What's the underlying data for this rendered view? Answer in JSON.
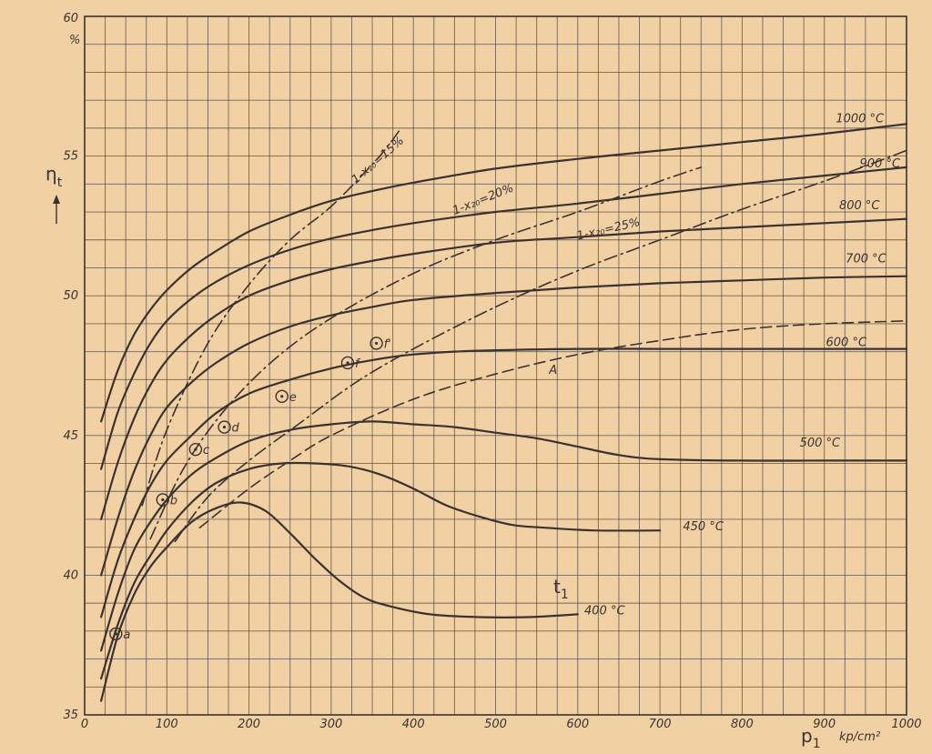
{
  "chart_data": {
    "type": "line",
    "xlabel": "p",
    "xlabel_sub": "1",
    "xunit": "kp/cm²",
    "ylabel": "η",
    "ylabel_sub": "t",
    "yunit": "%",
    "param_label": "t",
    "param_label_sub": "1",
    "xlim": [
      0,
      1000
    ],
    "ylim": [
      35,
      60
    ],
    "x_ticks": [
      "0",
      "100",
      "200",
      "300",
      "400",
      "500",
      "600",
      "700",
      "800",
      "900",
      "1000"
    ],
    "y_ticks": [
      "35",
      "40",
      "45",
      "50",
      "55",
      "60"
    ],
    "grid": true,
    "series": [
      {
        "name": "400 °C",
        "style": "solid",
        "label_at": [
          608,
          38.6
        ],
        "points": [
          [
            20,
            35.5
          ],
          [
            40,
            37.8
          ],
          [
            60,
            39.3
          ],
          [
            80,
            40.3
          ],
          [
            100,
            41
          ],
          [
            130,
            41.9
          ],
          [
            160,
            42.4
          ],
          [
            190,
            42.6
          ],
          [
            220,
            42.3
          ],
          [
            250,
            41.5
          ],
          [
            280,
            40.6
          ],
          [
            310,
            39.8
          ],
          [
            340,
            39.2
          ],
          [
            370,
            38.9
          ],
          [
            420,
            38.6
          ],
          [
            480,
            38.5
          ],
          [
            540,
            38.5
          ],
          [
            600,
            38.6
          ]
        ]
      },
      {
        "name": "450 °C",
        "style": "solid",
        "label_at": [
          728,
          41.6
        ],
        "points": [
          [
            20,
            36.3
          ],
          [
            40,
            38.2
          ],
          [
            60,
            39.7
          ],
          [
            80,
            40.7
          ],
          [
            100,
            41.6
          ],
          [
            130,
            42.6
          ],
          [
            160,
            43.3
          ],
          [
            200,
            43.8
          ],
          [
            240,
            44
          ],
          [
            280,
            44
          ],
          [
            320,
            43.9
          ],
          [
            360,
            43.6
          ],
          [
            400,
            43.1
          ],
          [
            440,
            42.5
          ],
          [
            480,
            42.1
          ],
          [
            520,
            41.8
          ],
          [
            560,
            41.7
          ],
          [
            620,
            41.6
          ],
          [
            700,
            41.6
          ]
        ]
      },
      {
        "name": "500 °C",
        "style": "solid",
        "label_at": [
          870,
          44.6
        ],
        "points": [
          [
            20,
            37.3
          ],
          [
            40,
            39.3
          ],
          [
            60,
            40.9
          ],
          [
            80,
            41.9
          ],
          [
            100,
            42.7
          ],
          [
            130,
            43.6
          ],
          [
            160,
            44.2
          ],
          [
            200,
            44.8
          ],
          [
            250,
            45.2
          ],
          [
            300,
            45.4
          ],
          [
            350,
            45.5
          ],
          [
            400,
            45.4
          ],
          [
            450,
            45.3
          ],
          [
            500,
            45.1
          ],
          [
            550,
            44.9
          ],
          [
            600,
            44.6
          ],
          [
            650,
            44.3
          ],
          [
            700,
            44.15
          ],
          [
            800,
            44.1
          ],
          [
            900,
            44.1
          ],
          [
            1000,
            44.1
          ]
        ]
      },
      {
        "name": "600 °C",
        "style": "solid",
        "label_at": [
          902,
          48.2
        ],
        "points": [
          [
            20,
            38.5
          ],
          [
            40,
            40.5
          ],
          [
            60,
            42
          ],
          [
            80,
            43.2
          ],
          [
            100,
            44.1
          ],
          [
            130,
            45
          ],
          [
            160,
            45.8
          ],
          [
            200,
            46.5
          ],
          [
            250,
            47
          ],
          [
            300,
            47.4
          ],
          [
            350,
            47.7
          ],
          [
            400,
            47.9
          ],
          [
            450,
            48
          ],
          [
            500,
            48.05
          ],
          [
            600,
            48.1
          ],
          [
            700,
            48.1
          ],
          [
            800,
            48.1
          ],
          [
            900,
            48.1
          ],
          [
            1000,
            48.1
          ]
        ]
      },
      {
        "name": "700 °C",
        "style": "solid",
        "label_at": [
          926,
          51.2
        ],
        "points": [
          [
            20,
            40
          ],
          [
            40,
            42
          ],
          [
            60,
            43.7
          ],
          [
            80,
            45
          ],
          [
            100,
            46
          ],
          [
            130,
            46.9
          ],
          [
            160,
            47.6
          ],
          [
            200,
            48.3
          ],
          [
            250,
            48.9
          ],
          [
            300,
            49.3
          ],
          [
            350,
            49.6
          ],
          [
            400,
            49.85
          ],
          [
            500,
            50.1
          ],
          [
            600,
            50.3
          ],
          [
            700,
            50.45
          ],
          [
            800,
            50.55
          ],
          [
            900,
            50.65
          ],
          [
            1000,
            50.7
          ]
        ]
      },
      {
        "name": "800 °C",
        "style": "solid",
        "label_at": [
          918,
          53.1
        ],
        "points": [
          [
            20,
            42
          ],
          [
            40,
            44
          ],
          [
            60,
            45.6
          ],
          [
            80,
            46.8
          ],
          [
            100,
            47.7
          ],
          [
            130,
            48.6
          ],
          [
            160,
            49.3
          ],
          [
            200,
            50
          ],
          [
            250,
            50.55
          ],
          [
            300,
            50.95
          ],
          [
            350,
            51.25
          ],
          [
            400,
            51.5
          ],
          [
            500,
            51.9
          ],
          [
            600,
            52.1
          ],
          [
            700,
            52.3
          ],
          [
            800,
            52.45
          ],
          [
            900,
            52.6
          ],
          [
            1000,
            52.75
          ]
        ]
      },
      {
        "name": "900 °C",
        "style": "solid",
        "label_at": [
          943,
          54.6
        ],
        "points": [
          [
            20,
            43.8
          ],
          [
            40,
            45.8
          ],
          [
            60,
            47.2
          ],
          [
            80,
            48.3
          ],
          [
            100,
            49.1
          ],
          [
            130,
            49.9
          ],
          [
            160,
            50.5
          ],
          [
            200,
            51.1
          ],
          [
            250,
            51.65
          ],
          [
            300,
            52.05
          ],
          [
            350,
            52.35
          ],
          [
            400,
            52.6
          ],
          [
            500,
            53
          ],
          [
            600,
            53.3
          ],
          [
            700,
            53.65
          ],
          [
            800,
            54
          ],
          [
            900,
            54.3
          ],
          [
            1000,
            54.6
          ]
        ]
      },
      {
        "name": "1000 °C",
        "style": "solid",
        "label_at": [
          914,
          56.2
        ],
        "points": [
          [
            20,
            45.5
          ],
          [
            40,
            47.3
          ],
          [
            60,
            48.6
          ],
          [
            80,
            49.5
          ],
          [
            100,
            50.2
          ],
          [
            130,
            51
          ],
          [
            160,
            51.6
          ],
          [
            200,
            52.3
          ],
          [
            250,
            52.9
          ],
          [
            300,
            53.4
          ],
          [
            350,
            53.75
          ],
          [
            400,
            54.05
          ],
          [
            500,
            54.55
          ],
          [
            600,
            54.9
          ],
          [
            700,
            55.2
          ],
          [
            800,
            55.5
          ],
          [
            900,
            55.8
          ],
          [
            1000,
            56.15
          ]
        ]
      },
      {
        "name": "A",
        "style": "dashed",
        "label_at": [
          565,
          47.2
        ],
        "points": [
          [
            140,
            41.7
          ],
          [
            200,
            43.1
          ],
          [
            250,
            44.1
          ],
          [
            300,
            45
          ],
          [
            400,
            46.3
          ],
          [
            500,
            47.2
          ],
          [
            600,
            47.9
          ],
          [
            700,
            48.4
          ],
          [
            800,
            48.8
          ],
          [
            900,
            49
          ],
          [
            1000,
            49.1
          ]
        ]
      },
      {
        "name": "1-x₂₀=15%",
        "style": "dashdot",
        "label_at": [
          330,
          54.0
        ],
        "label_angle": -41,
        "points": [
          [
            70,
            42.5
          ],
          [
            100,
            45.2
          ],
          [
            150,
            48.3
          ],
          [
            200,
            50.4
          ],
          [
            250,
            52
          ],
          [
            300,
            53.2
          ],
          [
            350,
            54.7
          ],
          [
            370,
            55.4
          ],
          [
            385,
            56
          ]
        ]
      },
      {
        "name": "1-x₂₀=20%",
        "style": "dashdot",
        "label_at": [
          450,
          52.9
        ],
        "label_angle": -22,
        "points": [
          [
            80,
            41.3
          ],
          [
            120,
            43.8
          ],
          [
            170,
            45.9
          ],
          [
            230,
            47.7
          ],
          [
            300,
            49.2
          ],
          [
            400,
            50.8
          ],
          [
            500,
            52
          ],
          [
            600,
            53
          ],
          [
            700,
            54.1
          ],
          [
            750,
            54.6
          ]
        ]
      },
      {
        "name": "1-x₂₀=25%",
        "style": "dashdot",
        "label_at": [
          600,
          52.0
        ],
        "label_angle": -13,
        "points": [
          [
            110,
            41.2
          ],
          [
            150,
            42.8
          ],
          [
            200,
            44.1
          ],
          [
            260,
            45.4
          ],
          [
            330,
            46.9
          ],
          [
            400,
            48.1
          ],
          [
            500,
            49.6
          ],
          [
            600,
            50.9
          ],
          [
            700,
            52
          ],
          [
            800,
            53.1
          ],
          [
            900,
            54.1
          ],
          [
            1000,
            55.2
          ]
        ]
      }
    ],
    "points": [
      {
        "label": "a",
        "x": 38,
        "y": 37.9
      },
      {
        "label": "b",
        "x": 95,
        "y": 42.7
      },
      {
        "label": "c",
        "x": 135,
        "y": 44.5
      },
      {
        "label": "d",
        "x": 170,
        "y": 45.3
      },
      {
        "label": "e",
        "x": 240,
        "y": 46.4
      },
      {
        "label": "f",
        "x": 320,
        "y": 47.6
      },
      {
        "label": "f'",
        "x": 355,
        "y": 48.3
      }
    ]
  }
}
